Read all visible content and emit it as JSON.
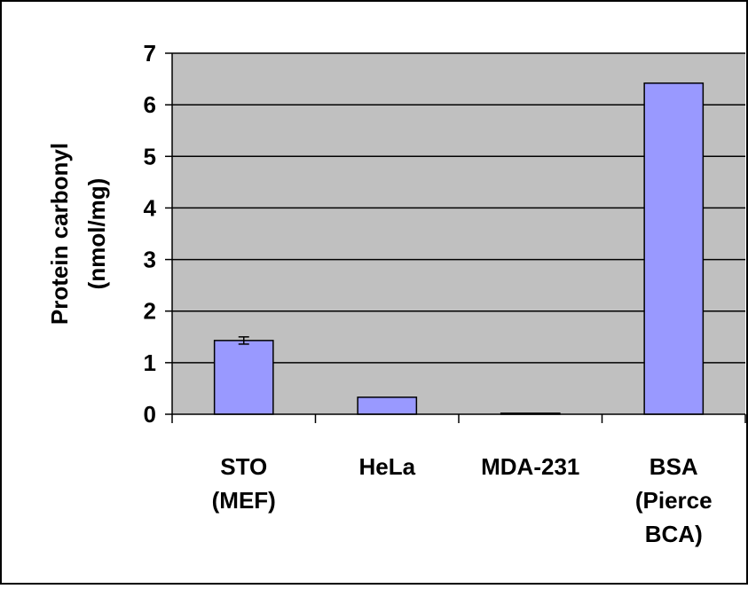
{
  "chart_data": {
    "type": "bar",
    "categories": [
      [
        "STO",
        "(MEF)"
      ],
      [
        "HeLa"
      ],
      [
        "MDA-231"
      ],
      [
        "BSA",
        "(Pierce",
        "BCA)"
      ]
    ],
    "values": [
      1.43,
      0.33,
      0.02,
      6.42
    ],
    "error_bars": [
      0.07,
      null,
      null,
      null
    ],
    "title": "",
    "xlabel": "",
    "ylabel": [
      "Protein carbonyl",
      "(nmol/mg)"
    ],
    "ylim": [
      0,
      7
    ],
    "yticks": [
      0,
      1,
      2,
      3,
      4,
      5,
      6,
      7
    ],
    "grid": true,
    "legend": "none",
    "colors": {
      "plot_background": "#c0c0c0",
      "bar_fill": "#9999ff",
      "bar_stroke": "#000000",
      "gridline": "#000000",
      "frame": "#000000"
    }
  }
}
